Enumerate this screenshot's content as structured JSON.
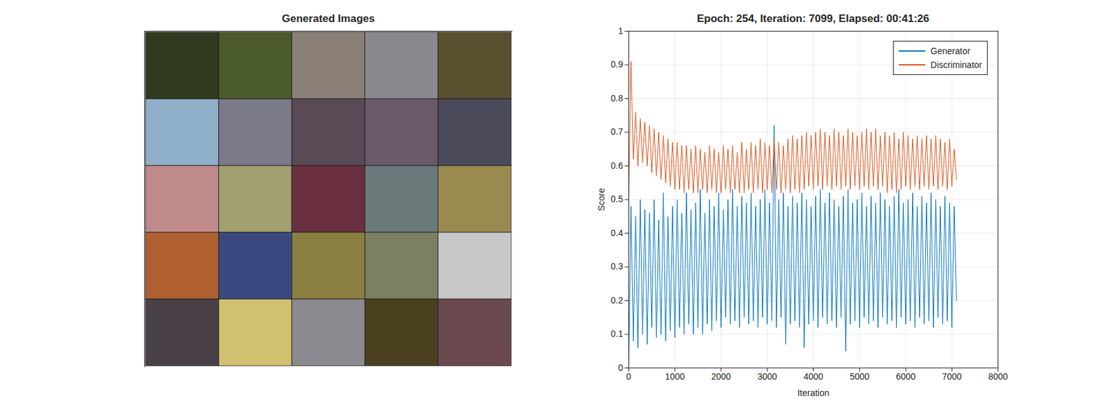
{
  "chart_data": [
    {
      "type": "image_grid",
      "title": "Generated Images",
      "colors": [
        [
          "#2f3a1e",
          "#4a5a2a",
          "#8a8078",
          "#8c8890",
          "#5a5030"
        ],
        [
          "#8fb0c8",
          "#7a7a88",
          "#5a4a55",
          "#6a5a68",
          "#4a4a5a"
        ],
        [
          "#c08a8a",
          "#a0a070",
          "#6a3040",
          "#6a7a7a",
          "#9a8a50"
        ],
        [
          "#b06030",
          "#3a4a80",
          "#8a8040",
          "#7a8060",
          "#c8c8c8"
        ],
        [
          "#4a4048",
          "#d0c070",
          "#8a8a90",
          "#4a4020",
          "#6a4a50"
        ]
      ]
    },
    {
      "type": "line",
      "title": "Epoch: 254, Iteration: 7099, Elapsed: 00:41:26",
      "x_label": "Iteration",
      "y_label": "Score",
      "xlim": [
        0,
        8000
      ],
      "xticks": [
        0,
        1000,
        2000,
        3000,
        4000,
        5000,
        6000,
        7000,
        8000
      ],
      "ylim": [
        0,
        1
      ],
      "yticks": [
        0,
        0.1,
        0.2,
        0.3,
        0.4,
        0.5,
        0.6,
        0.7,
        0.8,
        0.9,
        1
      ],
      "grid": true,
      "legend": "northeast",
      "x": [
        0,
        50,
        100,
        150,
        200,
        250,
        300,
        350,
        400,
        450,
        500,
        550,
        600,
        650,
        700,
        750,
        800,
        850,
        900,
        950,
        1000,
        1050,
        1100,
        1150,
        1200,
        1250,
        1300,
        1350,
        1400,
        1450,
        1500,
        1550,
        1600,
        1650,
        1700,
        1750,
        1800,
        1850,
        1900,
        1950,
        2000,
        2050,
        2100,
        2150,
        2200,
        2250,
        2300,
        2350,
        2400,
        2450,
        2500,
        2550,
        2600,
        2650,
        2700,
        2750,
        2800,
        2850,
        2900,
        2950,
        3000,
        3050,
        3100,
        3150,
        3200,
        3250,
        3300,
        3350,
        3400,
        3450,
        3500,
        3550,
        3600,
        3650,
        3700,
        3750,
        3800,
        3850,
        3900,
        3950,
        4000,
        4050,
        4100,
        4150,
        4200,
        4250,
        4300,
        4350,
        4400,
        4450,
        4500,
        4550,
        4600,
        4650,
        4700,
        4750,
        4800,
        4850,
        4900,
        4950,
        5000,
        5050,
        5100,
        5150,
        5200,
        5250,
        5300,
        5350,
        5400,
        5450,
        5500,
        5550,
        5600,
        5650,
        5700,
        5750,
        5800,
        5850,
        5900,
        5950,
        6000,
        6050,
        6100,
        6150,
        6200,
        6250,
        6300,
        6350,
        6400,
        6450,
        6500,
        6550,
        6600,
        6650,
        6700,
        6750,
        6800,
        6850,
        6900,
        6950,
        7000,
        7050,
        7099
      ],
      "series": [
        {
          "name": "Generator",
          "color": "#0072bd",
          "values": [
            0,
            0.48,
            0.08,
            0.45,
            0.06,
            0.5,
            0.1,
            0.47,
            0.07,
            0.46,
            0.12,
            0.5,
            0.09,
            0.44,
            0.1,
            0.52,
            0.08,
            0.45,
            0.11,
            0.48,
            0.09,
            0.5,
            0.12,
            0.46,
            0.1,
            0.52,
            0.13,
            0.47,
            0.1,
            0.49,
            0.12,
            0.53,
            0.1,
            0.46,
            0.13,
            0.5,
            0.11,
            0.48,
            0.14,
            0.52,
            0.12,
            0.47,
            0.15,
            0.5,
            0.13,
            0.53,
            0.14,
            0.48,
            0.12,
            0.51,
            0.15,
            0.49,
            0.13,
            0.52,
            0.14,
            0.48,
            0.12,
            0.5,
            0.15,
            0.53,
            0.13,
            0.49,
            0.14,
            0.72,
            0.12,
            0.5,
            0.15,
            0.52,
            0.07,
            0.48,
            0.13,
            0.51,
            0.14,
            0.49,
            0.12,
            0.52,
            0.06,
            0.5,
            0.13,
            0.48,
            0.14,
            0.51,
            0.12,
            0.53,
            0.15,
            0.49,
            0.13,
            0.52,
            0.14,
            0.5,
            0.12,
            0.48,
            0.15,
            0.51,
            0.05,
            0.53,
            0.13,
            0.49,
            0.14,
            0.5,
            0.12,
            0.52,
            0.15,
            0.48,
            0.13,
            0.51,
            0.14,
            0.49,
            0.12,
            0.52,
            0.15,
            0.5,
            0.13,
            0.48,
            0.14,
            0.51,
            0.12,
            0.53,
            0.15,
            0.49,
            0.13,
            0.5,
            0.14,
            0.52,
            0.12,
            0.48,
            0.15,
            0.51,
            0.13,
            0.49,
            0.14,
            0.52,
            0.12,
            0.5,
            0.15,
            0.48,
            0.13,
            0.51,
            0.14,
            0.49,
            0.12,
            0.48,
            0.2
          ]
        },
        {
          "name": "Discriminator",
          "color": "#d95319",
          "values": [
            0.5,
            0.91,
            0.62,
            0.76,
            0.6,
            0.74,
            0.61,
            0.73,
            0.6,
            0.72,
            0.58,
            0.71,
            0.57,
            0.7,
            0.56,
            0.69,
            0.55,
            0.68,
            0.54,
            0.67,
            0.53,
            0.67,
            0.53,
            0.66,
            0.52,
            0.66,
            0.53,
            0.65,
            0.52,
            0.66,
            0.52,
            0.65,
            0.53,
            0.64,
            0.52,
            0.66,
            0.53,
            0.65,
            0.52,
            0.64,
            0.52,
            0.66,
            0.53,
            0.65,
            0.52,
            0.66,
            0.53,
            0.64,
            0.52,
            0.67,
            0.52,
            0.65,
            0.53,
            0.67,
            0.52,
            0.66,
            0.53,
            0.68,
            0.52,
            0.67,
            0.53,
            0.66,
            0.52,
            0.68,
            0.53,
            0.67,
            0.52,
            0.66,
            0.53,
            0.68,
            0.52,
            0.69,
            0.53,
            0.68,
            0.52,
            0.69,
            0.53,
            0.7,
            0.54,
            0.69,
            0.53,
            0.7,
            0.54,
            0.71,
            0.53,
            0.7,
            0.54,
            0.69,
            0.53,
            0.71,
            0.54,
            0.7,
            0.53,
            0.69,
            0.54,
            0.71,
            0.53,
            0.7,
            0.54,
            0.69,
            0.53,
            0.7,
            0.54,
            0.71,
            0.53,
            0.7,
            0.54,
            0.71,
            0.53,
            0.69,
            0.54,
            0.7,
            0.52,
            0.69,
            0.53,
            0.7,
            0.52,
            0.68,
            0.53,
            0.7,
            0.54,
            0.69,
            0.53,
            0.68,
            0.54,
            0.69,
            0.53,
            0.68,
            0.54,
            0.69,
            0.53,
            0.68,
            0.54,
            0.69,
            0.53,
            0.68,
            0.54,
            0.67,
            0.53,
            0.68,
            0.54,
            0.65,
            0.56
          ]
        }
      ]
    }
  ]
}
